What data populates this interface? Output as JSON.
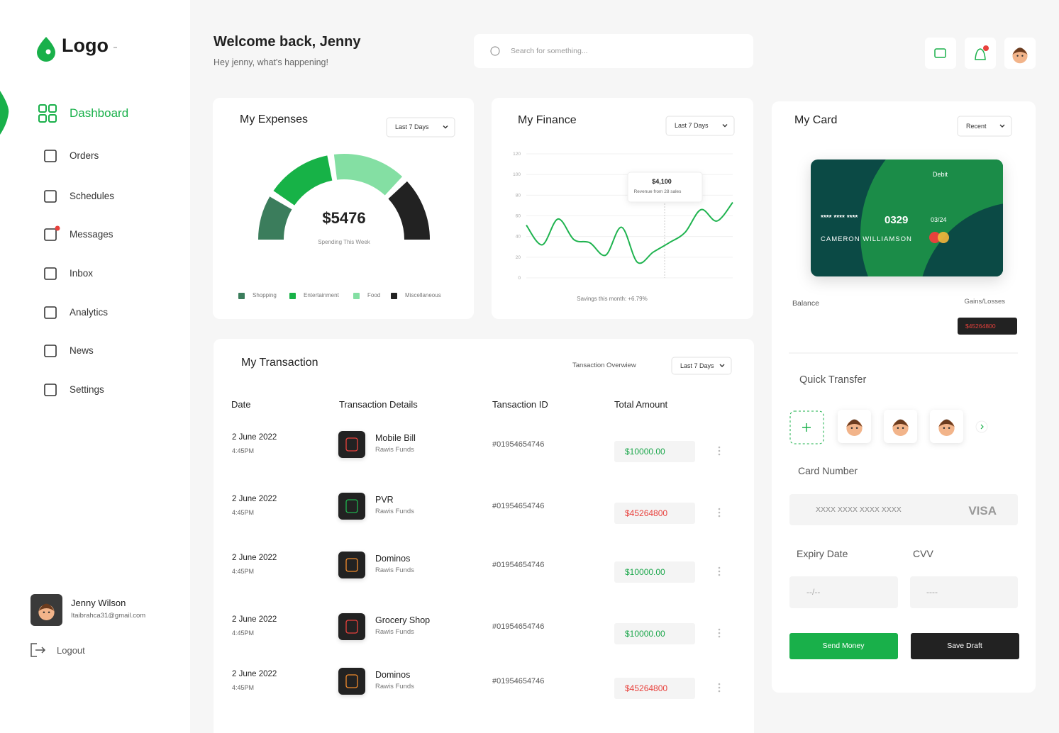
{
  "sidebar": {
    "logo": "Logo",
    "menu": [
      {
        "label": "Dashboard",
        "active": true
      },
      {
        "label": "Orders"
      },
      {
        "label": "Schedules"
      },
      {
        "label": "Messages",
        "badge": true
      },
      {
        "label": "Inbox"
      },
      {
        "label": "Analytics"
      },
      {
        "label": "News"
      },
      {
        "label": "Settings"
      }
    ],
    "user": {
      "name": "Jenny Wilson",
      "email": "Itaibrahca31@gmail.com"
    },
    "logout": "Logout"
  },
  "header": {
    "title": "Welcome back, Jenny",
    "subtitle": "Hey jenny, what's happening!",
    "search": "Search for something..."
  },
  "expenses": {
    "title": "My Expenses",
    "filter": "Last 7 Days",
    "chart": {
      "type": "gauge",
      "total": "$5476",
      "caption": "Spending This Week",
      "series": [
        {
          "name": "Shopping",
          "color": "#3b7d5c",
          "value": 18
        },
        {
          "name": "Entertainment",
          "color": "#17b247",
          "value": 27
        },
        {
          "name": "Food",
          "color": "#84dfa3",
          "value": 30
        },
        {
          "name": "Miscellaneous",
          "color": "#222222",
          "value": 25
        }
      ]
    }
  },
  "finance": {
    "title": "My Finance",
    "filter": "Last 7 Days",
    "chart": {
      "type": "line",
      "color": "#1fb34f",
      "ylim": [
        0,
        120
      ],
      "yticks": [
        0,
        20,
        40,
        60,
        80,
        100,
        120
      ],
      "grid": true,
      "values": [
        51,
        32,
        57,
        37,
        34,
        22,
        49,
        15,
        25,
        34,
        44,
        66,
        55,
        73
      ],
      "annotation": {
        "value": "$4,100",
        "text": "Revenue from 28 sales"
      },
      "caption": "Savings this month: +6.79%"
    }
  },
  "card": {
    "title": "My Card",
    "filter": "Recent",
    "kind": "Debit",
    "masked": "**** **** ****",
    "last4": "0329",
    "expiry": "03/24",
    "holder": "CAMERON WILLIAMSON",
    "balance_label": "Balance",
    "gains_label": "Gains/Losses",
    "gains": "$45264800"
  },
  "transfer": {
    "title": "Quick Transfer",
    "card_number_label": "Card Number",
    "card_number_placeholder": "XXXX XXXX XXXX XXXX",
    "brand": "VISA",
    "expiry_label": "Expiry Date",
    "expiry_placeholder": "--/--",
    "cvv_label": "CVV",
    "cvv_placeholder": "----",
    "send": "Send Money",
    "draft": "Save Draft"
  },
  "transactions": {
    "title": "My Transaction",
    "overview": "Tansaction Overwiew",
    "filter": "Last 7 Days",
    "columns": [
      "Date",
      "Transaction Details",
      "Tansaction ID",
      "Total Amount"
    ],
    "rows": [
      {
        "date": "2 June 2022",
        "time": "4:45PM",
        "name": "Mobile Bill",
        "source": "Rawis Funds",
        "id": "#01954654746",
        "amount": "$10000.00",
        "amount_color": "#1aa64a",
        "icon_color": "#e8413c"
      },
      {
        "date": "2 June 2022",
        "time": "4:45PM",
        "name": "PVR",
        "source": "Rawis Funds",
        "id": "#01954654746",
        "amount": "$45264800",
        "amount_color": "#e8413c",
        "icon_color": "#1fb34f"
      },
      {
        "date": "2 June 2022",
        "time": "4:45PM",
        "name": "Dominos",
        "source": "Rawis Funds",
        "id": "#01954654746",
        "amount": "$10000.00",
        "amount_color": "#1aa64a",
        "icon_color": "#f08a2c"
      },
      {
        "date": "2 June 2022",
        "time": "4:45PM",
        "name": "Grocery Shop",
        "source": "Rawis Funds",
        "id": "#01954654746",
        "amount": "$10000.00",
        "amount_color": "#1aa64a",
        "icon_color": "#e8413c"
      },
      {
        "date": "2 June 2022",
        "time": "4:45PM",
        "name": "Dominos",
        "source": "Rawis Funds",
        "id": "#01954654746",
        "amount": "$45264800",
        "amount_color": "#e8413c",
        "icon_color": "#f08a2c"
      }
    ]
  }
}
